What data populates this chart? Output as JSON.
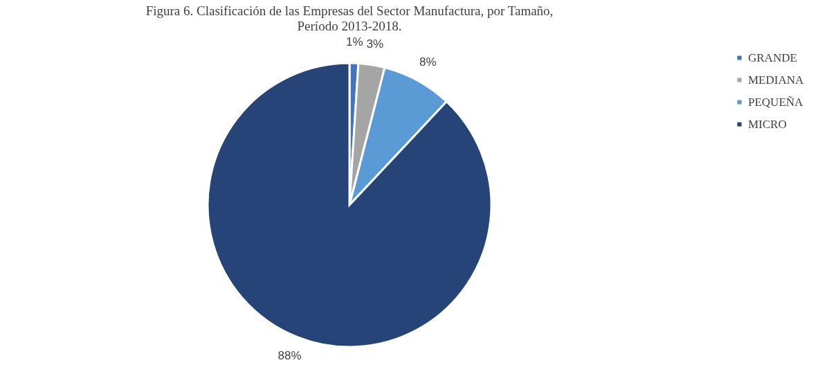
{
  "chart_data": {
    "type": "pie",
    "title": "Figura 6. Clasificación de las Empresas del Sector Manufactura, por Tamaño, Período 2013-2018.",
    "categories": [
      "GRANDE",
      "MEDIANA",
      "PEQUEÑA",
      "MICRO"
    ],
    "values": [
      1,
      3,
      8,
      88
    ],
    "value_labels": [
      "1%",
      "3%",
      "8%",
      "88%"
    ],
    "colors": [
      "#4472c4",
      "#a5a5a5",
      "#5b9bd5",
      "#264478"
    ],
    "legend": "right"
  }
}
